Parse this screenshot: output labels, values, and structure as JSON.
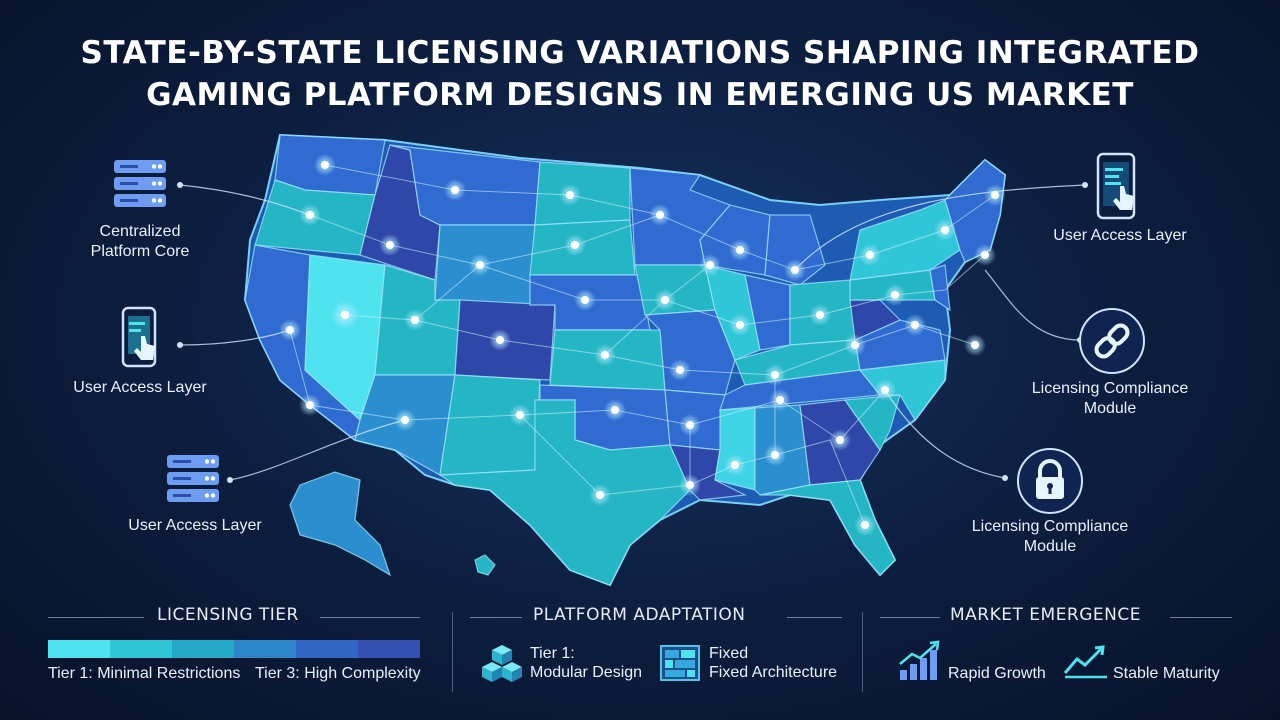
{
  "title": {
    "line1": "STATE-BY-STATE LICENSING VARIATIONS SHAPING INTEGRATED",
    "line2": "GAMING PLATFORM DESIGNS IN EMERGING US MARKET"
  },
  "callouts": {
    "left": [
      {
        "line1": "Centralized",
        "line2": "Platform Core",
        "icon": "server-stack-icon"
      },
      {
        "line1": "User Access Layer",
        "icon": "mobile-touch-icon"
      },
      {
        "line1": "User Access Layer",
        "icon": "server-stack-icon"
      }
    ],
    "right": [
      {
        "line1": "User Access Layer",
        "icon": "mobile-touch-icon"
      },
      {
        "line1": "Licensing Compliance",
        "line2": "Module",
        "icon": "chain-link-icon"
      },
      {
        "line1": "Licensing Compliance",
        "line2": "Module",
        "icon": "padlock-icon"
      }
    ]
  },
  "legend": {
    "licensing": {
      "title": "LICENSING TIER",
      "low_label": "Tier 1: Minimal Restrictions",
      "high_label": "Tier 3: High Complexity",
      "gradient": [
        "#4fe3f0",
        "#2fc7d8",
        "#24a9c9",
        "#2c86c7",
        "#3266c4",
        "#3450b0"
      ]
    },
    "platform": {
      "title": "PLATFORM ADAPTATION",
      "item1_line1": "Tier 1:",
      "item1_line2": "Modular Design",
      "item1_icon": "modular-cubes-icon",
      "item2_line1": "Fixed",
      "item2_line2": "Fixed Architecture",
      "item2_icon": "fixed-grid-icon"
    },
    "market": {
      "title": "MARKET EMERGENCE",
      "item1": "Rapid Growth",
      "item1_icon": "rising-bars-icon",
      "item2": "Stable Maturity",
      "item2_icon": "trend-line-icon"
    }
  },
  "colors": {
    "tier_light": "#3fd3e6",
    "tier_teal": "#24b6c4",
    "tier_mid": "#2b8fcf",
    "tier_blue": "#2f6bd0",
    "tier_dark": "#2e47a8",
    "node_glow": "#b8ecff"
  }
}
